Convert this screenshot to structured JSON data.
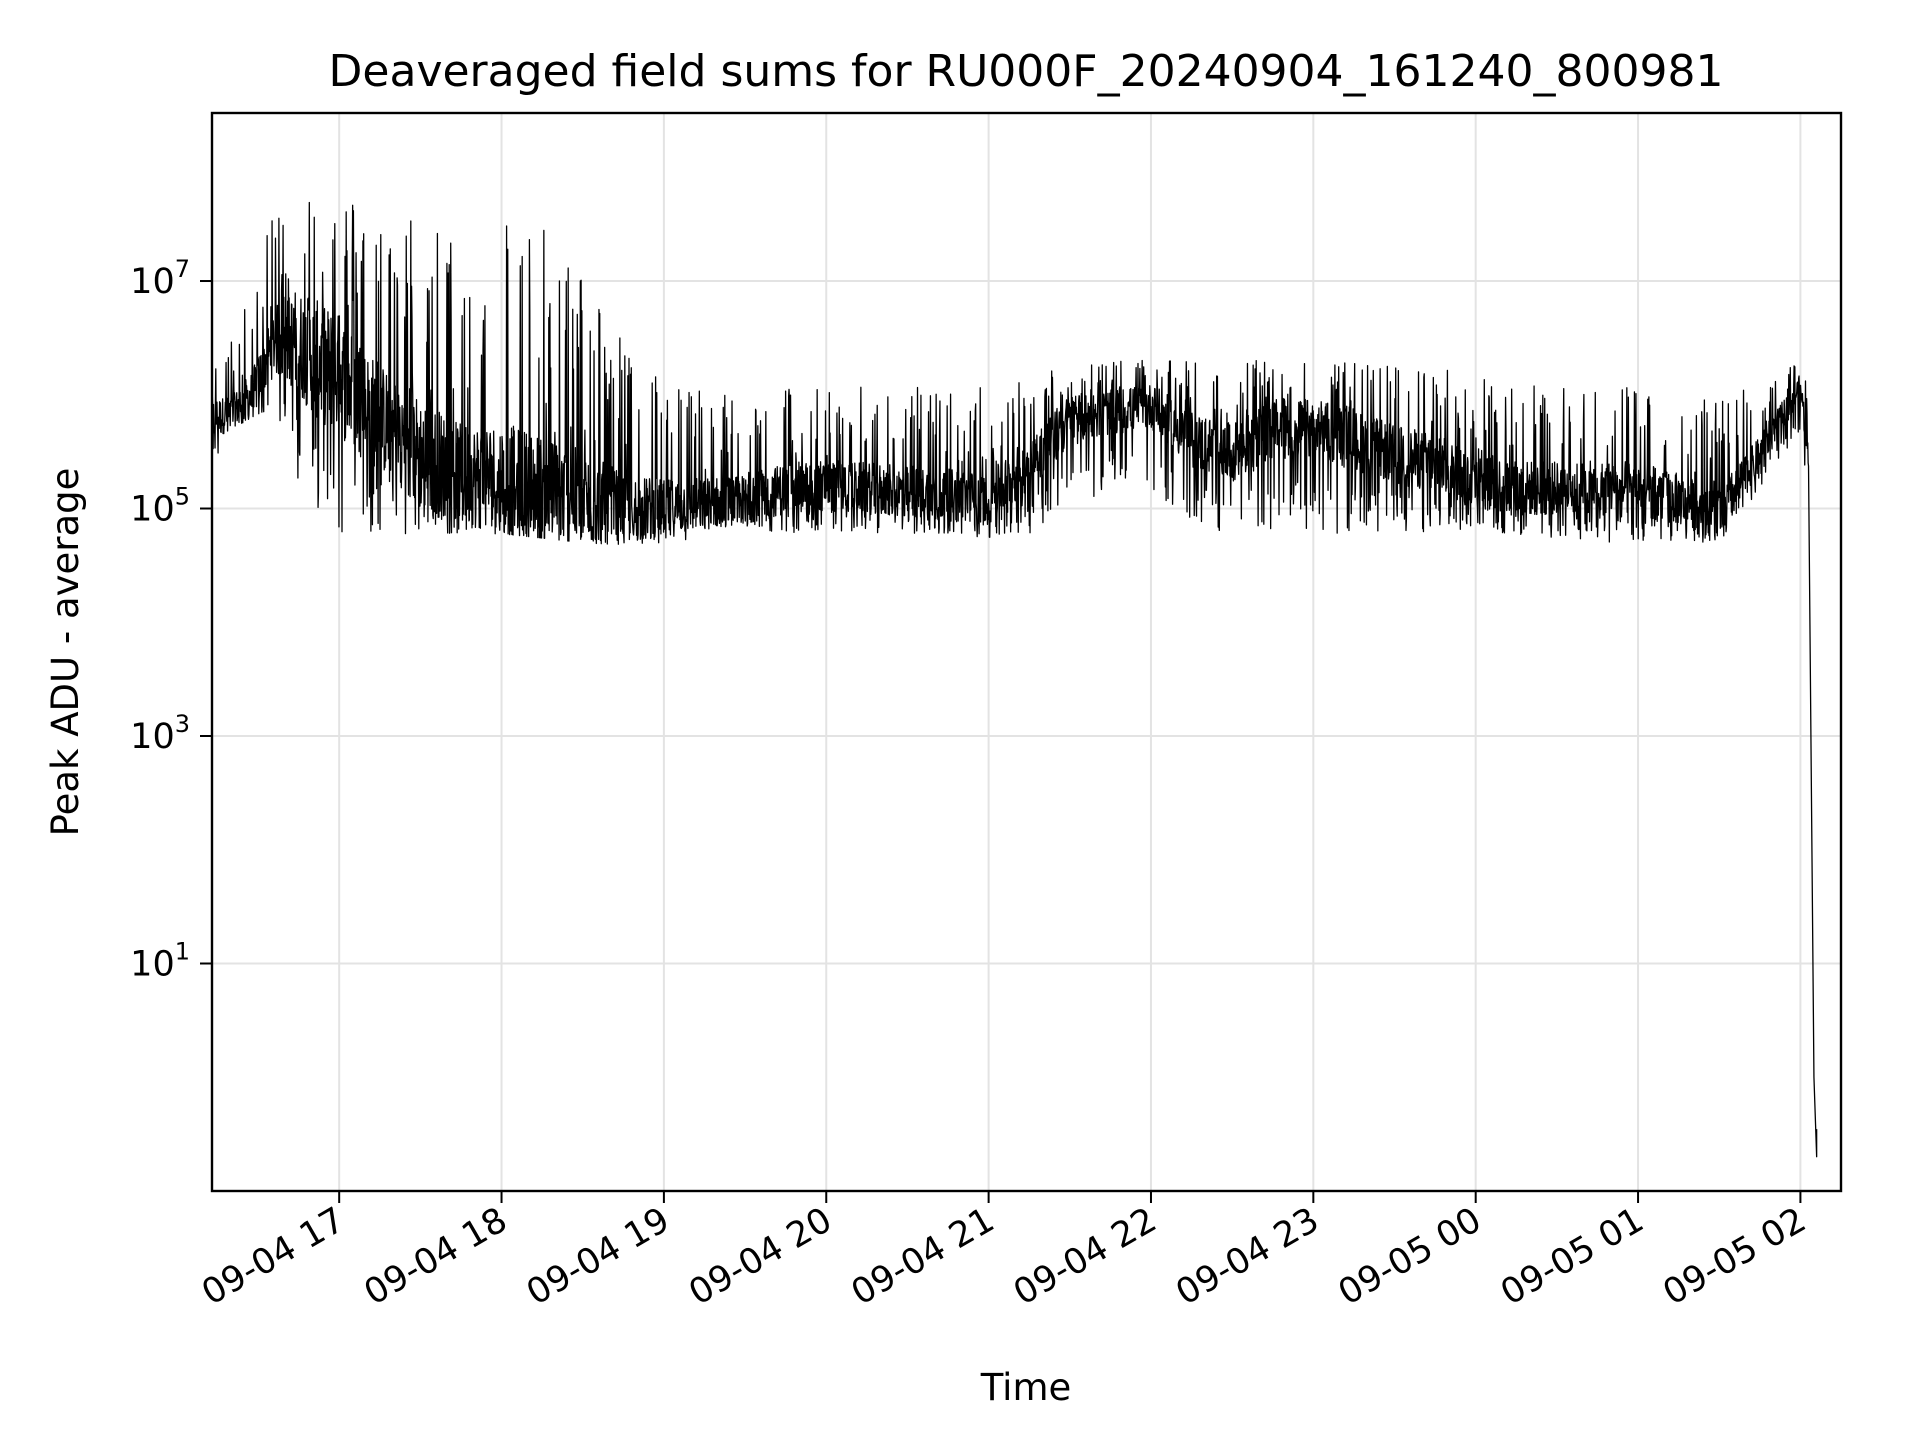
{
  "chart_data": {
    "type": "line",
    "title": "Deaveraged field sums for RU000F_20240904_161240_800981",
    "xlabel": "Time",
    "ylabel": "Peak ADU - average",
    "yscale": "log",
    "grid": true,
    "legend": "none",
    "line_color": "#000000",
    "xlim": [
      "2024-09-04 16:13",
      "2024-09-05 02:15"
    ],
    "ylim": [
      0.1,
      300000000
    ],
    "x_ticks": [
      {
        "value": "2024-09-04 17:00",
        "label": "09-04 17"
      },
      {
        "value": "2024-09-04 18:00",
        "label": "09-04 18"
      },
      {
        "value": "2024-09-04 19:00",
        "label": "09-04 19"
      },
      {
        "value": "2024-09-04 20:00",
        "label": "09-04 20"
      },
      {
        "value": "2024-09-04 21:00",
        "label": "09-04 21"
      },
      {
        "value": "2024-09-04 22:00",
        "label": "09-04 22"
      },
      {
        "value": "2024-09-04 23:00",
        "label": "09-04 23"
      },
      {
        "value": "2024-09-05 00:00",
        "label": "09-05 00"
      },
      {
        "value": "2024-09-05 01:00",
        "label": "09-05 01"
      },
      {
        "value": "2024-09-05 02:00",
        "label": "09-05 02"
      }
    ],
    "y_ticks": [
      {
        "value": 10,
        "base": "10",
        "exp": "1"
      },
      {
        "value": 1000,
        "base": "10",
        "exp": "3"
      },
      {
        "value": 100000,
        "base": "10",
        "exp": "5"
      },
      {
        "value": 10000000,
        "base": "10",
        "exp": "7"
      }
    ],
    "series": [
      {
        "style": "dense-noise",
        "x": [
          "2024-09-04 16:13",
          "2024-09-04 16:20",
          "2024-09-04 16:28",
          "2024-09-04 16:36",
          "2024-09-04 16:44",
          "2024-09-04 16:52",
          "2024-09-04 17:00",
          "2024-09-04 17:10",
          "2024-09-04 17:20",
          "2024-09-04 17:30",
          "2024-09-04 17:45",
          "2024-09-04 18:00",
          "2024-09-04 18:15",
          "2024-09-04 18:30",
          "2024-09-04 18:45",
          "2024-09-04 19:00",
          "2024-09-04 19:15",
          "2024-09-04 19:30",
          "2024-09-04 19:45",
          "2024-09-04 20:00",
          "2024-09-04 20:15",
          "2024-09-04 20:30",
          "2024-09-04 20:45",
          "2024-09-04 21:00",
          "2024-09-04 21:15",
          "2024-09-04 21:30",
          "2024-09-04 21:45",
          "2024-09-04 22:00",
          "2024-09-04 22:15",
          "2024-09-04 22:30",
          "2024-09-04 22:45",
          "2024-09-04 23:00",
          "2024-09-04 23:15",
          "2024-09-04 23:30",
          "2024-09-04 23:45",
          "2024-09-05 00:00",
          "2024-09-05 00:15",
          "2024-09-05 00:30",
          "2024-09-05 00:45",
          "2024-09-05 01:00",
          "2024-09-05 01:15",
          "2024-09-05 01:30",
          "2024-09-05 01:45",
          "2024-09-05 02:00",
          "2024-09-05 02:03",
          "2024-09-05 02:05",
          "2024-09-05 02:06"
        ],
        "low": [
          200000,
          500000,
          600000,
          800000,
          200000,
          80000,
          60000,
          60000,
          60000,
          60000,
          60000,
          60000,
          55000,
          50000,
          48000,
          48000,
          55000,
          60000,
          60000,
          60000,
          60000,
          60000,
          55000,
          55000,
          60000,
          100000,
          150000,
          150000,
          70000,
          60000,
          60000,
          60000,
          60000,
          60000,
          60000,
          60000,
          55000,
          55000,
          50000,
          50000,
          50000,
          50000,
          150000,
          500000,
          100000,
          1,
          0.2
        ],
        "mid": [
          600000,
          700000,
          1000000,
          3000000,
          3000000,
          2000000,
          1500000,
          800000,
          500000,
          300000,
          200000,
          180000,
          150000,
          120000,
          100000,
          100000,
          110000,
          120000,
          150000,
          160000,
          150000,
          140000,
          130000,
          120000,
          250000,
          600000,
          700000,
          800000,
          400000,
          300000,
          500000,
          500000,
          400000,
          300000,
          250000,
          180000,
          150000,
          150000,
          150000,
          150000,
          120000,
          90000,
          300000,
          1200000,
          300000,
          1,
          0.2
        ],
        "high": [
          3000000,
          3000000,
          10000000,
          40000000,
          80000000,
          80000000,
          80000000,
          40000000,
          30000000,
          50000000,
          20000000,
          50000000,
          30000000,
          15000000,
          3000000,
          1500000,
          1200000,
          1000000,
          1200000,
          1200000,
          1200000,
          1200000,
          1200000,
          1200000,
          1500000,
          2000000,
          2000000,
          2000000,
          2000000,
          2000000,
          2000000,
          2000000,
          2000000,
          1800000,
          1800000,
          1500000,
          1500000,
          1200000,
          1200000,
          1200000,
          1000000,
          1000000,
          1200000,
          2000000,
          1200000,
          1,
          0.2
        ]
      }
    ]
  }
}
